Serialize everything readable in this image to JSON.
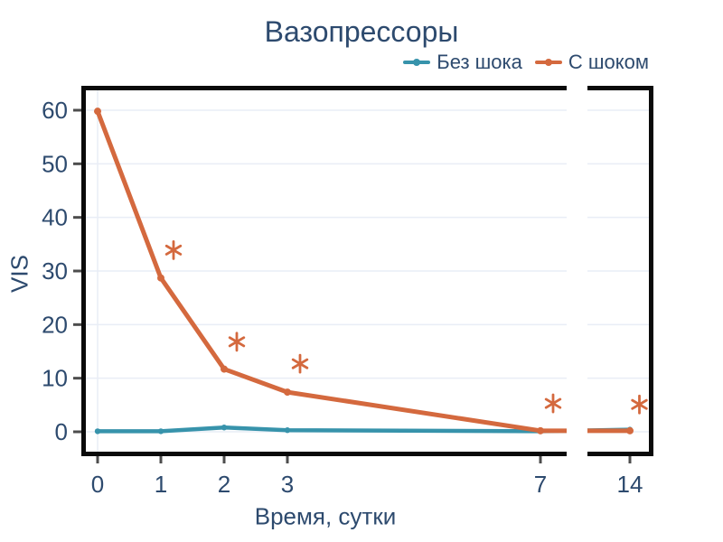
{
  "figure": {
    "title": "Вазопрессоры",
    "x_axis_label": "Время, сутки",
    "y_axis_label": "VIS"
  },
  "legend": {
    "position": "top-right",
    "items": [
      {
        "label": "Без шока",
        "color": "#3793ab"
      },
      {
        "label": "С шоком",
        "color": "#d4693e"
      }
    ]
  },
  "chart_data": {
    "type": "line",
    "title": "Вазопрессоры",
    "xlabel": "Время, сутки",
    "ylabel": "VIS",
    "x": [
      0,
      1,
      2,
      3,
      7,
      14
    ],
    "x_tick_labels": [
      "0",
      "1",
      "2",
      "3",
      "7",
      "14"
    ],
    "y_ticks": [
      0,
      10,
      20,
      30,
      40,
      50,
      60
    ],
    "ylim": [
      -4,
      64
    ],
    "axis_break": {
      "axis": "x",
      "between": [
        7,
        14
      ]
    },
    "grid": "horizontal-major",
    "legend_position": "top-right",
    "series": [
      {
        "name": "Без шока",
        "color": "#3793ab",
        "values": [
          0.1,
          0.1,
          0.8,
          0.3,
          0.1,
          0.4
        ]
      },
      {
        "name": "С шоком",
        "color": "#d4693e",
        "values": [
          59.8,
          28.7,
          11.7,
          7.4,
          0.2,
          0.2
        ]
      }
    ],
    "annotations": [
      {
        "symbol": "*",
        "x": 1.2,
        "y": 33.9
      },
      {
        "symbol": "*",
        "x": 2.2,
        "y": 16.8
      },
      {
        "symbol": "*",
        "x": 3.2,
        "y": 12.7
      },
      {
        "symbol": "*",
        "x": 7.2,
        "y": 5.3
      },
      {
        "symbol": "*",
        "x": 14.15,
        "y": 5.1
      }
    ],
    "colors": {
      "text": "#2d4a6e",
      "grid": "#e9edf6",
      "border": "#0a0a0a",
      "tick": "#4d4d4d",
      "annotation": "#d4693e"
    }
  }
}
